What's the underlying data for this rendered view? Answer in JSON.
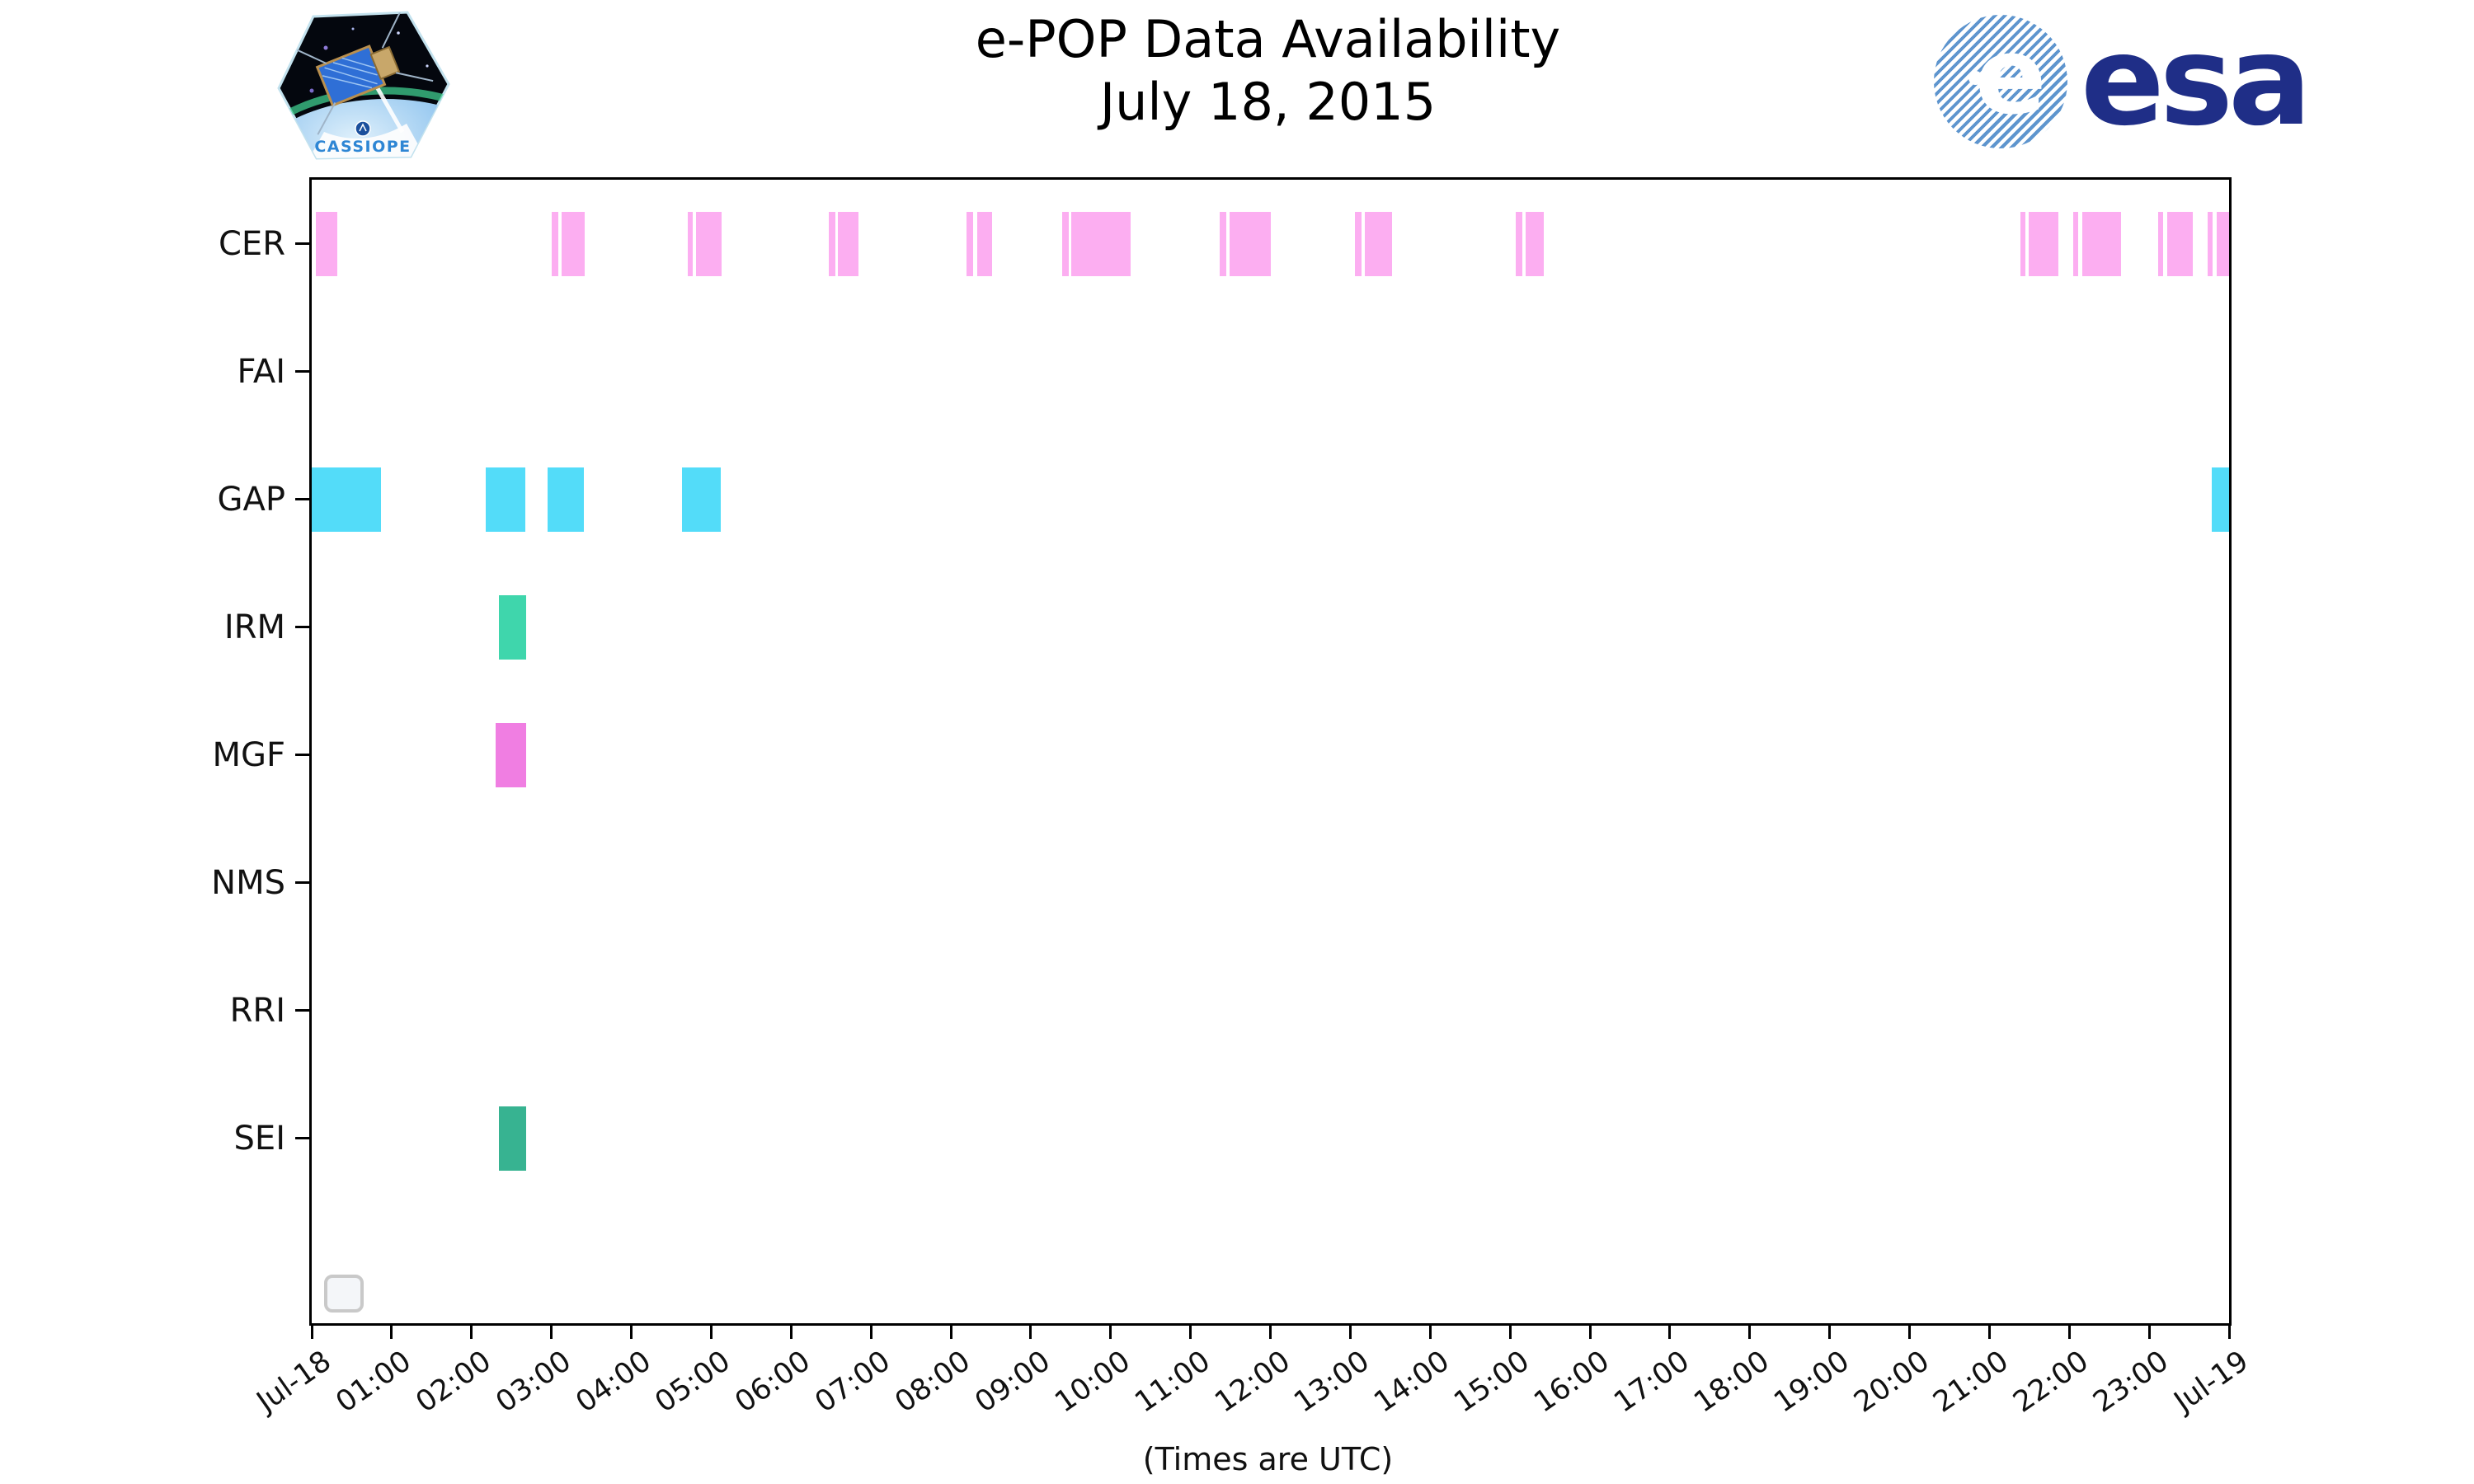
{
  "header": {
    "title_line1": "e-POP Data Availability",
    "title_line2": "July 18, 2015",
    "cassiope_label": "CASSIOPE",
    "esa_wordmark": "esa"
  },
  "chart_data": {
    "type": "timeline",
    "title": "e-POP Data Availability July 18, 2015",
    "xlabel": "(Times are UTC)",
    "x_axis": {
      "start_label": "Jul-18",
      "end_label": "Jul-19",
      "range_hours": [
        0,
        24
      ],
      "grid": false
    },
    "x_tick_labels": [
      "Jul-18",
      "01:00",
      "02:00",
      "03:00",
      "04:00",
      "05:00",
      "06:00",
      "07:00",
      "08:00",
      "09:00",
      "10:00",
      "11:00",
      "12:00",
      "13:00",
      "14:00",
      "15:00",
      "16:00",
      "17:00",
      "18:00",
      "19:00",
      "20:00",
      "21:00",
      "22:00",
      "23:00",
      "Jul-19"
    ],
    "y_categories": [
      "CER",
      "FAI",
      "GAP",
      "IRM",
      "MGF",
      "NMS",
      "RRI",
      "SEI"
    ],
    "rows": [
      {
        "label": "CER",
        "color": "#fcaef1",
        "bars": [
          [
            0.05,
            0.32
          ],
          [
            3.0,
            3.09
          ],
          [
            3.13,
            3.42
          ],
          [
            4.71,
            4.77
          ],
          [
            4.81,
            5.13
          ],
          [
            6.47,
            6.55
          ],
          [
            6.59,
            6.84
          ],
          [
            8.2,
            8.28
          ],
          [
            8.33,
            8.52
          ],
          [
            9.39,
            9.48
          ],
          [
            9.51,
            10.25
          ],
          [
            11.36,
            11.45
          ],
          [
            11.49,
            12.01
          ],
          [
            13.06,
            13.14
          ],
          [
            13.18,
            13.52
          ],
          [
            15.07,
            15.15
          ],
          [
            15.19,
            15.42
          ],
          [
            21.39,
            21.45
          ],
          [
            21.49,
            21.86
          ],
          [
            22.05,
            22.11
          ],
          [
            22.16,
            22.65
          ],
          [
            23.11,
            23.17
          ],
          [
            23.23,
            23.55
          ],
          [
            23.73,
            23.79
          ],
          [
            23.84,
            24
          ]
        ]
      },
      {
        "label": "FAI",
        "color": null,
        "bars": []
      },
      {
        "label": "GAP",
        "color": "#53dcf9",
        "bars": [
          [
            0,
            0.87
          ],
          [
            2.18,
            2.67
          ],
          [
            2.95,
            3.41
          ],
          [
            4.63,
            5.12
          ],
          [
            23.78,
            24
          ]
        ]
      },
      {
        "label": "IRM",
        "color": "#3fd6ac",
        "bars": [
          [
            2.34,
            2.68
          ]
        ]
      },
      {
        "label": "MGF",
        "color": "#f07ee2",
        "bars": [
          [
            2.3,
            2.68
          ]
        ]
      },
      {
        "label": "NMS",
        "color": null,
        "bars": []
      },
      {
        "label": "RRI",
        "color": null,
        "bars": []
      },
      {
        "label": "SEI",
        "color": "#37b391",
        "bars": [
          [
            2.34,
            2.68
          ]
        ]
      }
    ]
  }
}
